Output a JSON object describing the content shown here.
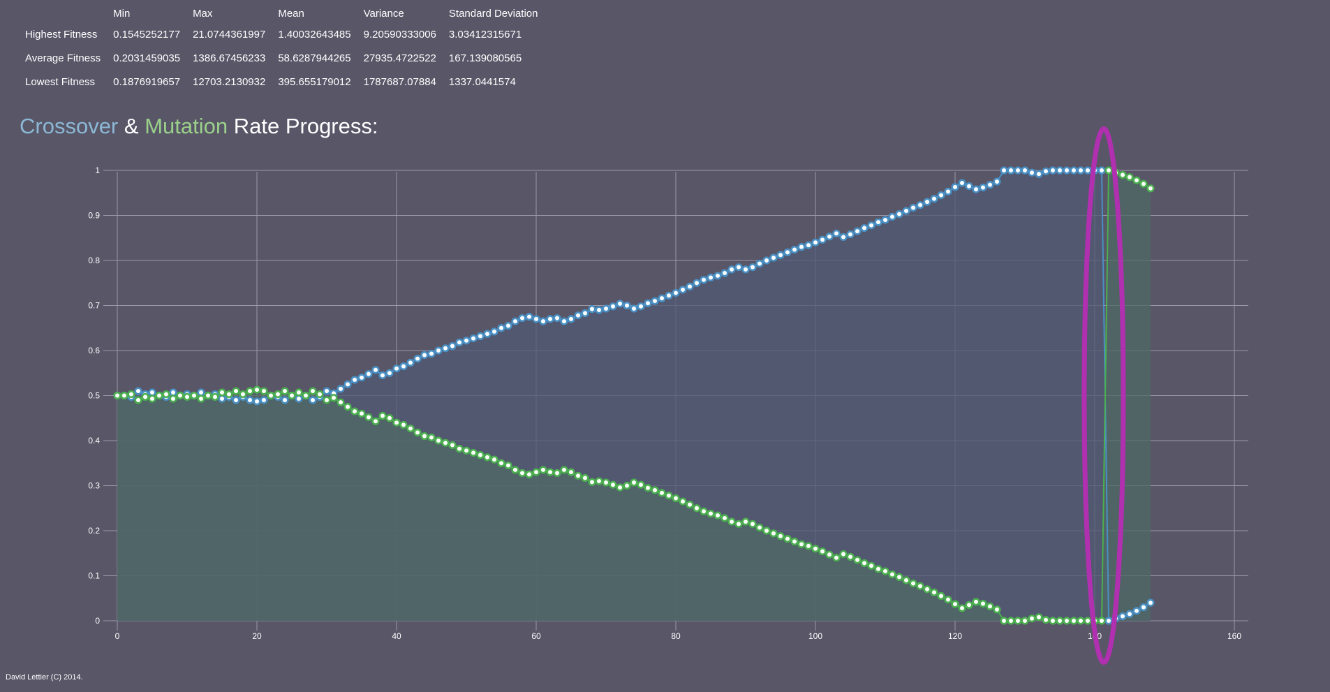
{
  "stats": {
    "headers": [
      "Min",
      "Max",
      "Mean",
      "Variance",
      "Standard Deviation"
    ],
    "rows": [
      {
        "label": "Highest Fitness",
        "values": [
          "0.1545252177",
          "21.0744361997",
          "1.40032643485",
          "9.20590333006",
          "3.03412315671"
        ]
      },
      {
        "label": "Average Fitness",
        "values": [
          "0.2031459035",
          "1386.67456233",
          "58.6287944265",
          "27935.4722522",
          "167.139080565"
        ]
      },
      {
        "label": "Lowest Fitness",
        "values": [
          "0.1876919657",
          "12703.2130932",
          "395.655179012",
          "1787687.07884",
          "1337.0441574"
        ]
      }
    ]
  },
  "title": {
    "crossover": "Crossover",
    "amp": "&",
    "mutation": "Mutation",
    "rest": "Rate Progress:"
  },
  "footer": "David Lettier (C) 2014.",
  "chart_data": {
    "type": "line",
    "title": "Crossover & Mutation Rate Progress:",
    "xlabel": "",
    "ylabel": "",
    "xlim": [
      0,
      160
    ],
    "ylim": [
      0,
      1
    ],
    "xticks": [
      "0",
      "20",
      "40",
      "60",
      "80",
      "100",
      "120",
      "140",
      "160"
    ],
    "yticks": [
      "0",
      "0.1",
      "0.2",
      "0.3",
      "0.4",
      "0.5",
      "0.6",
      "0.7",
      "0.8",
      "0.9",
      "1"
    ],
    "grid": true,
    "colors": {
      "crossover": "#4a90c4",
      "mutation": "#4caf50",
      "crossover_fill": "#4f5a72",
      "mutation_fill": "#4f6a64",
      "highlight": "#b030b0",
      "marker_fill": "#ffffff"
    },
    "series": [
      {
        "key": "crossover",
        "name": "Crossover",
        "x_start": 0,
        "values": [
          0.5,
          0.5,
          0.497,
          0.51,
          0.503,
          0.507,
          0.5,
          0.497,
          0.507,
          0.5,
          0.503,
          0.5,
          0.507,
          0.5,
          0.503,
          0.493,
          0.497,
          0.49,
          0.497,
          0.49,
          0.487,
          0.49,
          0.5,
          0.497,
          0.49,
          0.5,
          0.493,
          0.5,
          0.49,
          0.497,
          0.51,
          0.505,
          0.515,
          0.525,
          0.535,
          0.54,
          0.548,
          0.557,
          0.545,
          0.55,
          0.56,
          0.565,
          0.573,
          0.582,
          0.59,
          0.593,
          0.6,
          0.605,
          0.61,
          0.618,
          0.622,
          0.627,
          0.632,
          0.637,
          0.642,
          0.65,
          0.655,
          0.665,
          0.672,
          0.675,
          0.67,
          0.665,
          0.67,
          0.672,
          0.665,
          0.67,
          0.678,
          0.683,
          0.692,
          0.69,
          0.693,
          0.698,
          0.704,
          0.7,
          0.693,
          0.698,
          0.705,
          0.71,
          0.716,
          0.722,
          0.728,
          0.735,
          0.742,
          0.75,
          0.757,
          0.762,
          0.766,
          0.772,
          0.78,
          0.785,
          0.78,
          0.785,
          0.793,
          0.8,
          0.806,
          0.812,
          0.818,
          0.824,
          0.83,
          0.834,
          0.84,
          0.846,
          0.853,
          0.86,
          0.852,
          0.858,
          0.865,
          0.872,
          0.878,
          0.885,
          0.89,
          0.897,
          0.903,
          0.91,
          0.917,
          0.923,
          0.93,
          0.937,
          0.945,
          0.953,
          0.963,
          0.972,
          0.965,
          0.958,
          0.962,
          0.968,
          0.975,
          1.0,
          1.0,
          1.0,
          1.0,
          0.995,
          0.992,
          0.998,
          1.0,
          1.0,
          1.0,
          1.0,
          1.0,
          1.0,
          1.0,
          1.0,
          0.0,
          0.005,
          0.01,
          0.015,
          0.022,
          0.03,
          0.04
        ]
      },
      {
        "key": "mutation",
        "name": "Mutation",
        "x_start": 0,
        "values": [
          0.5,
          0.5,
          0.503,
          0.49,
          0.497,
          0.493,
          0.5,
          0.503,
          0.493,
          0.5,
          0.497,
          0.5,
          0.493,
          0.5,
          0.497,
          0.507,
          0.503,
          0.51,
          0.503,
          0.51,
          0.513,
          0.51,
          0.5,
          0.503,
          0.51,
          0.5,
          0.507,
          0.5,
          0.51,
          0.503,
          0.49,
          0.495,
          0.485,
          0.475,
          0.465,
          0.46,
          0.452,
          0.443,
          0.455,
          0.45,
          0.44,
          0.435,
          0.427,
          0.418,
          0.41,
          0.407,
          0.4,
          0.395,
          0.39,
          0.382,
          0.378,
          0.373,
          0.368,
          0.363,
          0.358,
          0.35,
          0.345,
          0.335,
          0.328,
          0.325,
          0.33,
          0.335,
          0.33,
          0.328,
          0.335,
          0.33,
          0.322,
          0.317,
          0.308,
          0.31,
          0.307,
          0.302,
          0.296,
          0.3,
          0.307,
          0.302,
          0.295,
          0.29,
          0.284,
          0.278,
          0.272,
          0.265,
          0.258,
          0.25,
          0.243,
          0.238,
          0.234,
          0.228,
          0.22,
          0.215,
          0.22,
          0.215,
          0.207,
          0.2,
          0.194,
          0.188,
          0.182,
          0.176,
          0.17,
          0.166,
          0.16,
          0.154,
          0.147,
          0.14,
          0.148,
          0.142,
          0.135,
          0.128,
          0.122,
          0.115,
          0.11,
          0.103,
          0.097,
          0.09,
          0.083,
          0.077,
          0.07,
          0.063,
          0.055,
          0.047,
          0.037,
          0.028,
          0.035,
          0.042,
          0.038,
          0.032,
          0.025,
          0.0,
          0.0,
          0.0,
          0.0,
          0.005,
          0.008,
          0.002,
          0.0,
          0.0,
          0.0,
          0.0,
          0.0,
          0.0,
          0.0,
          0.0,
          1.0,
          0.995,
          0.99,
          0.985,
          0.978,
          0.97,
          0.96
        ]
      }
    ]
  }
}
